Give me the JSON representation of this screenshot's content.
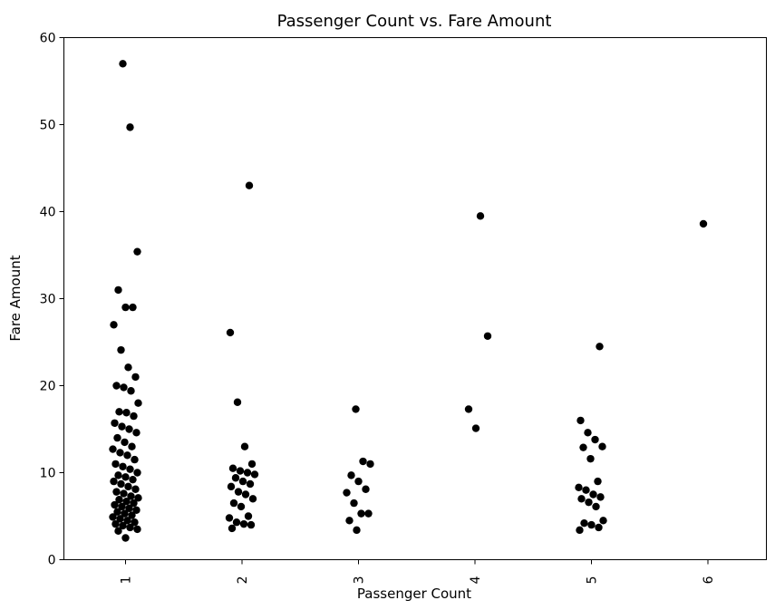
{
  "chart_data": {
    "type": "scatter",
    "title": "Passenger Count vs. Fare Amount",
    "xlabel": "Passenger Count",
    "ylabel": "Fare Amount",
    "x_categories": [
      "1",
      "2",
      "3",
      "4",
      "5",
      "6"
    ],
    "ylim": [
      0,
      60
    ],
    "yticks": [
      0,
      10,
      20,
      30,
      40,
      50,
      60
    ],
    "grid": false,
    "marker_color": "#000000",
    "points": [
      {
        "x": 1,
        "y": 57.0
      },
      {
        "x": 1,
        "y": 49.7
      },
      {
        "x": 1,
        "y": 35.4
      },
      {
        "x": 1,
        "y": 31.0
      },
      {
        "x": 1,
        "y": 29.0
      },
      {
        "x": 1,
        "y": 29.0
      },
      {
        "x": 1,
        "y": 27.0
      },
      {
        "x": 1,
        "y": 24.1
      },
      {
        "x": 1,
        "y": 22.1
      },
      {
        "x": 1,
        "y": 21.0
      },
      {
        "x": 1,
        "y": 20.0
      },
      {
        "x": 1,
        "y": 19.8
      },
      {
        "x": 1,
        "y": 19.4
      },
      {
        "x": 1,
        "y": 18.0
      },
      {
        "x": 1,
        "y": 17.0
      },
      {
        "x": 1,
        "y": 16.9
      },
      {
        "x": 1,
        "y": 16.5
      },
      {
        "x": 1,
        "y": 15.7
      },
      {
        "x": 1,
        "y": 15.3
      },
      {
        "x": 1,
        "y": 15.0
      },
      {
        "x": 1,
        "y": 14.6
      },
      {
        "x": 1,
        "y": 14.0
      },
      {
        "x": 1,
        "y": 13.5
      },
      {
        "x": 1,
        "y": 13.0
      },
      {
        "x": 1,
        "y": 12.7
      },
      {
        "x": 1,
        "y": 12.3
      },
      {
        "x": 1,
        "y": 12.0
      },
      {
        "x": 1,
        "y": 11.5
      },
      {
        "x": 1,
        "y": 11.0
      },
      {
        "x": 1,
        "y": 10.7
      },
      {
        "x": 1,
        "y": 10.4
      },
      {
        "x": 1,
        "y": 10.0
      },
      {
        "x": 1,
        "y": 9.7
      },
      {
        "x": 1,
        "y": 9.5
      },
      {
        "x": 1,
        "y": 9.2
      },
      {
        "x": 1,
        "y": 9.0
      },
      {
        "x": 1,
        "y": 8.7
      },
      {
        "x": 1,
        "y": 8.4
      },
      {
        "x": 1,
        "y": 8.1
      },
      {
        "x": 1,
        "y": 7.8
      },
      {
        "x": 1,
        "y": 7.6
      },
      {
        "x": 1,
        "y": 7.3
      },
      {
        "x": 1,
        "y": 7.1
      },
      {
        "x": 1,
        "y": 6.9
      },
      {
        "x": 1,
        "y": 6.7
      },
      {
        "x": 1,
        "y": 6.5
      },
      {
        "x": 1,
        "y": 6.3
      },
      {
        "x": 1,
        "y": 6.1
      },
      {
        "x": 1,
        "y": 5.9
      },
      {
        "x": 1,
        "y": 5.7
      },
      {
        "x": 1,
        "y": 5.5
      },
      {
        "x": 1,
        "y": 5.3
      },
      {
        "x": 1,
        "y": 5.1
      },
      {
        "x": 1,
        "y": 4.9
      },
      {
        "x": 1,
        "y": 4.7
      },
      {
        "x": 1,
        "y": 4.5
      },
      {
        "x": 1,
        "y": 4.3
      },
      {
        "x": 1,
        "y": 4.1
      },
      {
        "x": 1,
        "y": 3.9
      },
      {
        "x": 1,
        "y": 3.7
      },
      {
        "x": 1,
        "y": 3.5
      },
      {
        "x": 1,
        "y": 3.3
      },
      {
        "x": 1,
        "y": 2.5
      },
      {
        "x": 2,
        "y": 43.0
      },
      {
        "x": 2,
        "y": 26.1
      },
      {
        "x": 2,
        "y": 18.1
      },
      {
        "x": 2,
        "y": 13.0
      },
      {
        "x": 2,
        "y": 11.0
      },
      {
        "x": 2,
        "y": 10.5
      },
      {
        "x": 2,
        "y": 10.2
      },
      {
        "x": 2,
        "y": 10.0
      },
      {
        "x": 2,
        "y": 9.8
      },
      {
        "x": 2,
        "y": 9.4
      },
      {
        "x": 2,
        "y": 9.0
      },
      {
        "x": 2,
        "y": 8.7
      },
      {
        "x": 2,
        "y": 8.4
      },
      {
        "x": 2,
        "y": 7.8
      },
      {
        "x": 2,
        "y": 7.5
      },
      {
        "x": 2,
        "y": 7.0
      },
      {
        "x": 2,
        "y": 6.5
      },
      {
        "x": 2,
        "y": 6.1
      },
      {
        "x": 2,
        "y": 5.0
      },
      {
        "x": 2,
        "y": 4.8
      },
      {
        "x": 2,
        "y": 4.3
      },
      {
        "x": 2,
        "y": 4.1
      },
      {
        "x": 2,
        "y": 4.0
      },
      {
        "x": 2,
        "y": 3.6
      },
      {
        "x": 3,
        "y": 17.3
      },
      {
        "x": 3,
        "y": 11.3
      },
      {
        "x": 3,
        "y": 11.0
      },
      {
        "x": 3,
        "y": 9.7
      },
      {
        "x": 3,
        "y": 9.0
      },
      {
        "x": 3,
        "y": 8.1
      },
      {
        "x": 3,
        "y": 7.7
      },
      {
        "x": 3,
        "y": 6.5
      },
      {
        "x": 3,
        "y": 5.3
      },
      {
        "x": 3,
        "y": 5.3
      },
      {
        "x": 3,
        "y": 4.5
      },
      {
        "x": 3,
        "y": 3.4
      },
      {
        "x": 4,
        "y": 39.5
      },
      {
        "x": 4,
        "y": 25.7
      },
      {
        "x": 4,
        "y": 17.3
      },
      {
        "x": 4,
        "y": 15.1
      },
      {
        "x": 5,
        "y": 24.5
      },
      {
        "x": 5,
        "y": 16.0
      },
      {
        "x": 5,
        "y": 14.6
      },
      {
        "x": 5,
        "y": 13.8
      },
      {
        "x": 5,
        "y": 13.0
      },
      {
        "x": 5,
        "y": 12.9
      },
      {
        "x": 5,
        "y": 11.6
      },
      {
        "x": 5,
        "y": 9.0
      },
      {
        "x": 5,
        "y": 8.3
      },
      {
        "x": 5,
        "y": 8.0
      },
      {
        "x": 5,
        "y": 7.5
      },
      {
        "x": 5,
        "y": 7.2
      },
      {
        "x": 5,
        "y": 7.0
      },
      {
        "x": 5,
        "y": 6.6
      },
      {
        "x": 5,
        "y": 6.1
      },
      {
        "x": 5,
        "y": 4.5
      },
      {
        "x": 5,
        "y": 4.2
      },
      {
        "x": 5,
        "y": 4.0
      },
      {
        "x": 5,
        "y": 3.7
      },
      {
        "x": 5,
        "y": 3.4
      },
      {
        "x": 6,
        "y": 38.6
      }
    ]
  }
}
